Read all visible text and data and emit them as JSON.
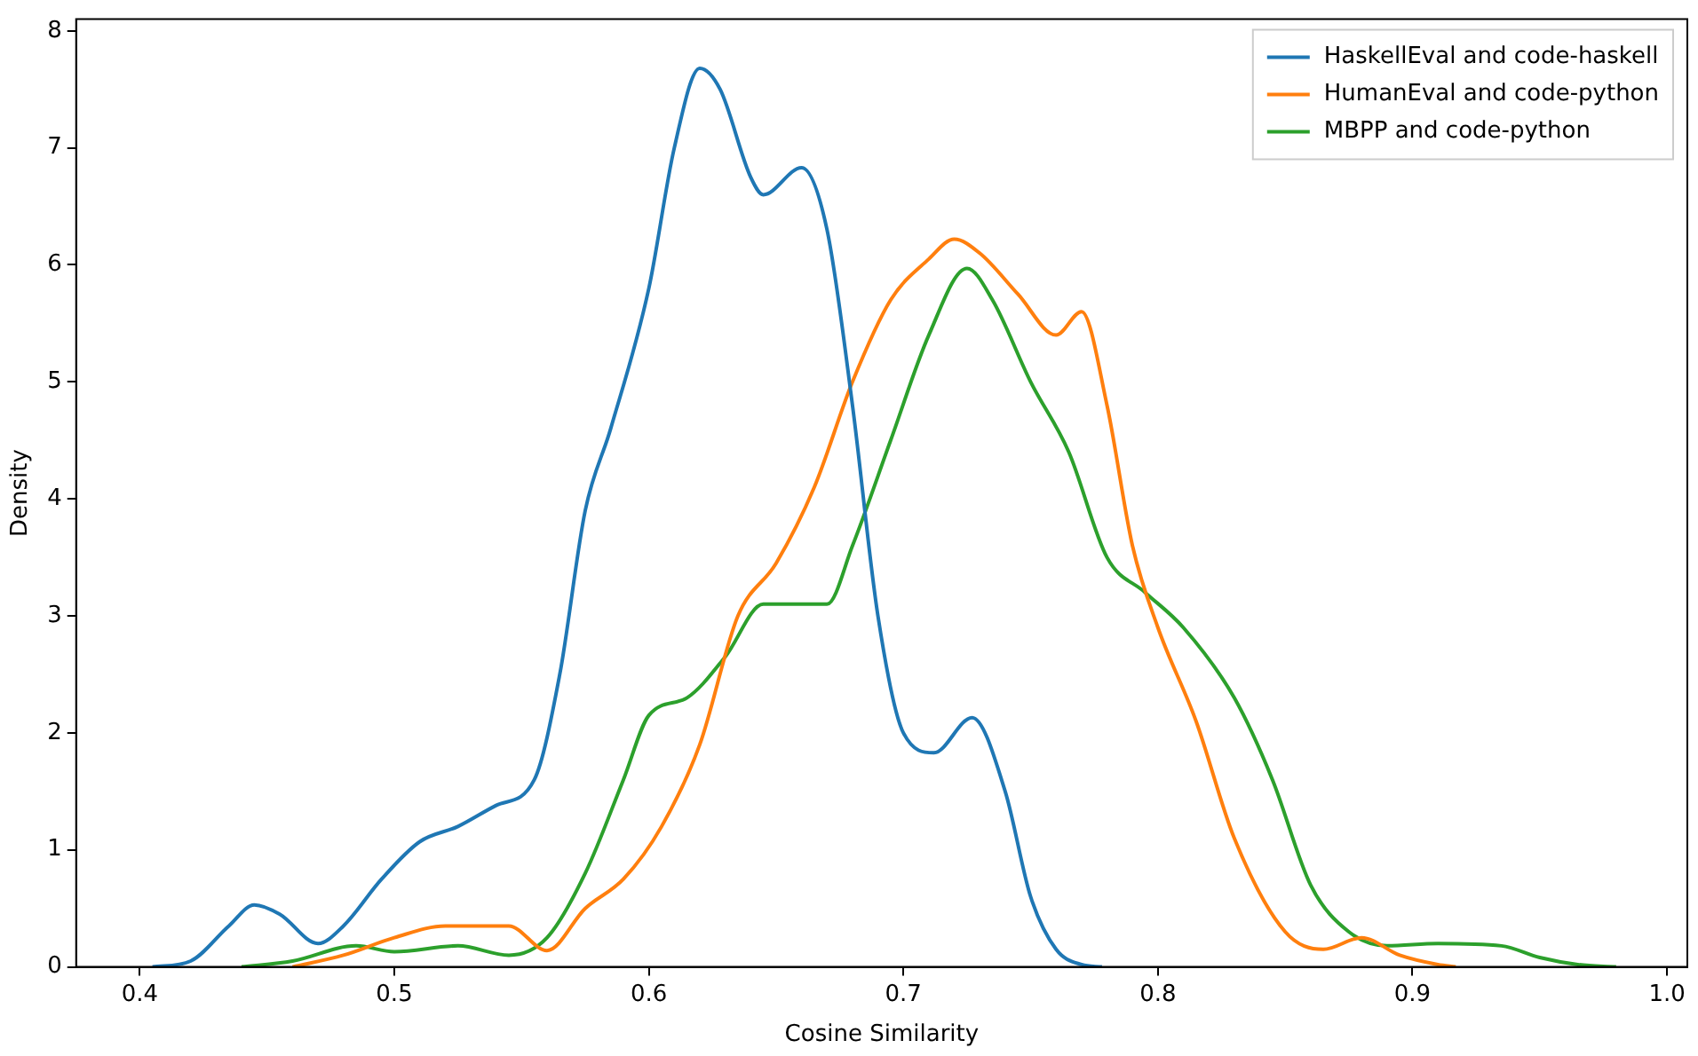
{
  "chart_data": {
    "type": "line",
    "xlabel": "Cosine Similarity",
    "ylabel": "Density",
    "legend": "top right",
    "marker": "none",
    "line_style": "solid",
    "grid": false,
    "xlim": [
      0.375,
      1.008
    ],
    "xticks": [
      {
        "value": 0.4,
        "label": "0.4"
      },
      {
        "value": 0.5,
        "label": "0.5"
      },
      {
        "value": 0.6,
        "label": "0.6"
      },
      {
        "value": 0.7,
        "label": "0.7"
      },
      {
        "value": 0.8,
        "label": "0.8"
      },
      {
        "value": 0.9,
        "label": "0.9"
      },
      {
        "value": 1.0,
        "label": "1.0"
      }
    ],
    "ylim": [
      0,
      8.1
    ],
    "yticks": [
      0,
      1,
      2,
      3,
      4,
      5,
      6,
      7,
      8
    ],
    "series": [
      {
        "name": "HaskellEval and code-haskell",
        "color": "#1f77b4",
        "x": [
          0.405,
          0.42,
          0.435,
          0.445,
          0.455,
          0.47,
          0.48,
          0.495,
          0.51,
          0.525,
          0.54,
          0.555,
          0.565,
          0.575,
          0.585,
          0.6,
          0.61,
          0.62,
          0.628,
          0.64,
          0.645,
          0.66,
          0.67,
          0.68,
          0.69,
          0.7,
          0.712,
          0.727,
          0.74,
          0.75,
          0.76,
          0.77,
          0.778
        ],
        "values": [
          0,
          0.05,
          0.35,
          0.53,
          0.45,
          0.2,
          0.35,
          0.75,
          1.07,
          1.2,
          1.38,
          1.6,
          2.5,
          3.9,
          4.6,
          5.8,
          7.0,
          7.68,
          7.5,
          6.75,
          6.6,
          6.83,
          6.3,
          4.8,
          3.0,
          2.0,
          1.83,
          2.13,
          1.5,
          0.6,
          0.15,
          0.02,
          0
        ]
      },
      {
        "name": "HumanEval and code-python",
        "color": "#ff7f0e",
        "x": [
          0.46,
          0.48,
          0.5,
          0.52,
          0.545,
          0.56,
          0.575,
          0.59,
          0.605,
          0.62,
          0.635,
          0.65,
          0.665,
          0.68,
          0.695,
          0.71,
          0.72,
          0.73,
          0.745,
          0.76,
          0.77,
          0.78,
          0.79,
          0.8,
          0.815,
          0.83,
          0.85,
          0.865,
          0.88,
          0.895,
          0.91,
          0.917
        ],
        "values": [
          0,
          0.1,
          0.25,
          0.35,
          0.35,
          0.14,
          0.5,
          0.75,
          1.2,
          1.9,
          3.0,
          3.45,
          4.1,
          5.0,
          5.7,
          6.05,
          6.22,
          6.1,
          5.75,
          5.4,
          5.6,
          4.8,
          3.6,
          2.9,
          2.1,
          1.1,
          0.3,
          0.15,
          0.25,
          0.1,
          0.02,
          0
        ]
      },
      {
        "name": "MBPP and code-python",
        "color": "#2ca02c",
        "x": [
          0.44,
          0.46,
          0.485,
          0.5,
          0.525,
          0.545,
          0.56,
          0.575,
          0.59,
          0.6,
          0.615,
          0.63,
          0.645,
          0.66,
          0.67,
          0.68,
          0.695,
          0.71,
          0.725,
          0.735,
          0.75,
          0.765,
          0.78,
          0.795,
          0.81,
          0.83,
          0.845,
          0.86,
          0.875,
          0.89,
          0.91,
          0.935,
          0.95,
          0.965,
          0.98
        ],
        "values": [
          0,
          0.05,
          0.18,
          0.13,
          0.18,
          0.1,
          0.25,
          0.8,
          1.6,
          2.15,
          2.3,
          2.65,
          3.1,
          3.1,
          3.1,
          3.6,
          4.5,
          5.4,
          5.97,
          5.7,
          5.0,
          4.4,
          3.5,
          3.2,
          2.9,
          2.3,
          1.6,
          0.7,
          0.3,
          0.18,
          0.2,
          0.18,
          0.08,
          0.02,
          0
        ]
      }
    ]
  }
}
